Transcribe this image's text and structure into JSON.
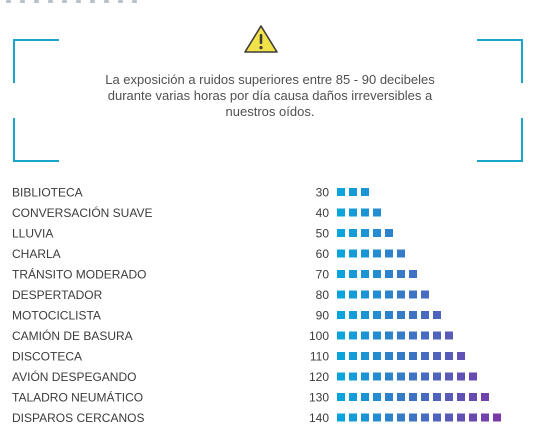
{
  "warning": {
    "icon": "warning-triangle-icon",
    "icon_color": "#f2e24a",
    "text": "La exposición a ruidos superiores entre 85 - 90 decibeles durante varias horas por día causa daños irreversibles a nuestros oídos."
  },
  "colors": {
    "bracket": "#1aa6c8",
    "square_start": "#0aa4dc",
    "square_end": "#7a3aa8"
  },
  "chart_data": {
    "type": "bar",
    "title": "",
    "xlabel": "",
    "ylabel": "",
    "unit_per_square": 10,
    "categories": [
      "BIBLIOTECA",
      "CONVERSACIÓN SUAVE",
      "LLUVIA",
      "CHARLA",
      "TRÁNSITO MODERADO",
      "DESPERTADOR",
      "MOTOCICLISTA",
      "CAMIÓN DE BASURA",
      "DISCOTECA",
      "AVIÓN DESPEGANDO",
      "TALADRO NEUMÁTICO",
      "DISPAROS CERCANOS"
    ],
    "values": [
      30,
      40,
      50,
      60,
      70,
      80,
      90,
      100,
      110,
      120,
      130,
      140
    ],
    "grid": false
  }
}
